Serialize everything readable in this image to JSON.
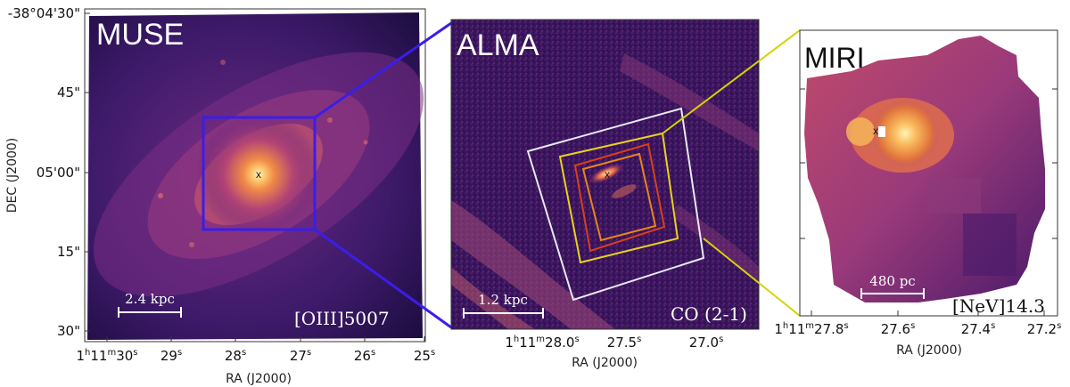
{
  "panels": {
    "muse": {
      "name": "MUSE",
      "line_label": "[OIII]5007",
      "scalebar": "2.4 kpc",
      "nucleus_marker": "x",
      "xlabel": "RA (J2000)",
      "ylabel": "DEC (J2000)",
      "x_ticks": [
        {
          "main": "1",
          "sup1": "h",
          "mid": "11",
          "sup2": "m",
          "sec": "30",
          "sup3": "s"
        },
        {
          "sec": "29",
          "sup3": "s"
        },
        {
          "sec": "28",
          "sup3": "s"
        },
        {
          "sec": "27",
          "sup3": "s"
        },
        {
          "sec": "26",
          "sup3": "s"
        },
        {
          "sec": "25",
          "sup3": "s"
        }
      ],
      "y_ticks": [
        "-38°04'30\"",
        "45\"",
        "05'00\"",
        "15\"",
        "30\""
      ]
    },
    "alma": {
      "name": "ALMA",
      "line_label": "CO (2-1)",
      "scalebar": "1.2 kpc",
      "nucleus_marker": "x",
      "xlabel": "RA (J2000)",
      "x_ticks": [
        {
          "main": "1",
          "sup1": "h",
          "mid": "11",
          "sup2": "m",
          "sec": "28.0",
          "sup3": "s"
        },
        {
          "sec": "27.5",
          "sup3": "s"
        },
        {
          "sec": "27.0",
          "sup3": "s"
        }
      ]
    },
    "miri": {
      "name": "MIRI",
      "line_label": "[NeV]14.3",
      "scalebar": "480 pc",
      "nucleus_marker": "x",
      "xlabel": "RA (J2000)",
      "x_ticks": [
        {
          "main": "1",
          "sup1": "h",
          "mid": "11",
          "sup2": "m",
          "sec": "27.8",
          "sup3": "s"
        },
        {
          "sec": "27.6",
          "sup3": "s"
        },
        {
          "sec": "27.4",
          "sup3": "s"
        },
        {
          "sec": "27.2",
          "sup3": "s"
        }
      ]
    }
  },
  "colors": {
    "zoom_muse_alma": "#3a1ee8",
    "zoom_alma_miri": "#d4d400",
    "box_white": "#e8e8f0",
    "box_yellow": "#e8d21c",
    "box_orange": "#e8861a",
    "box_red": "#d8401a"
  }
}
